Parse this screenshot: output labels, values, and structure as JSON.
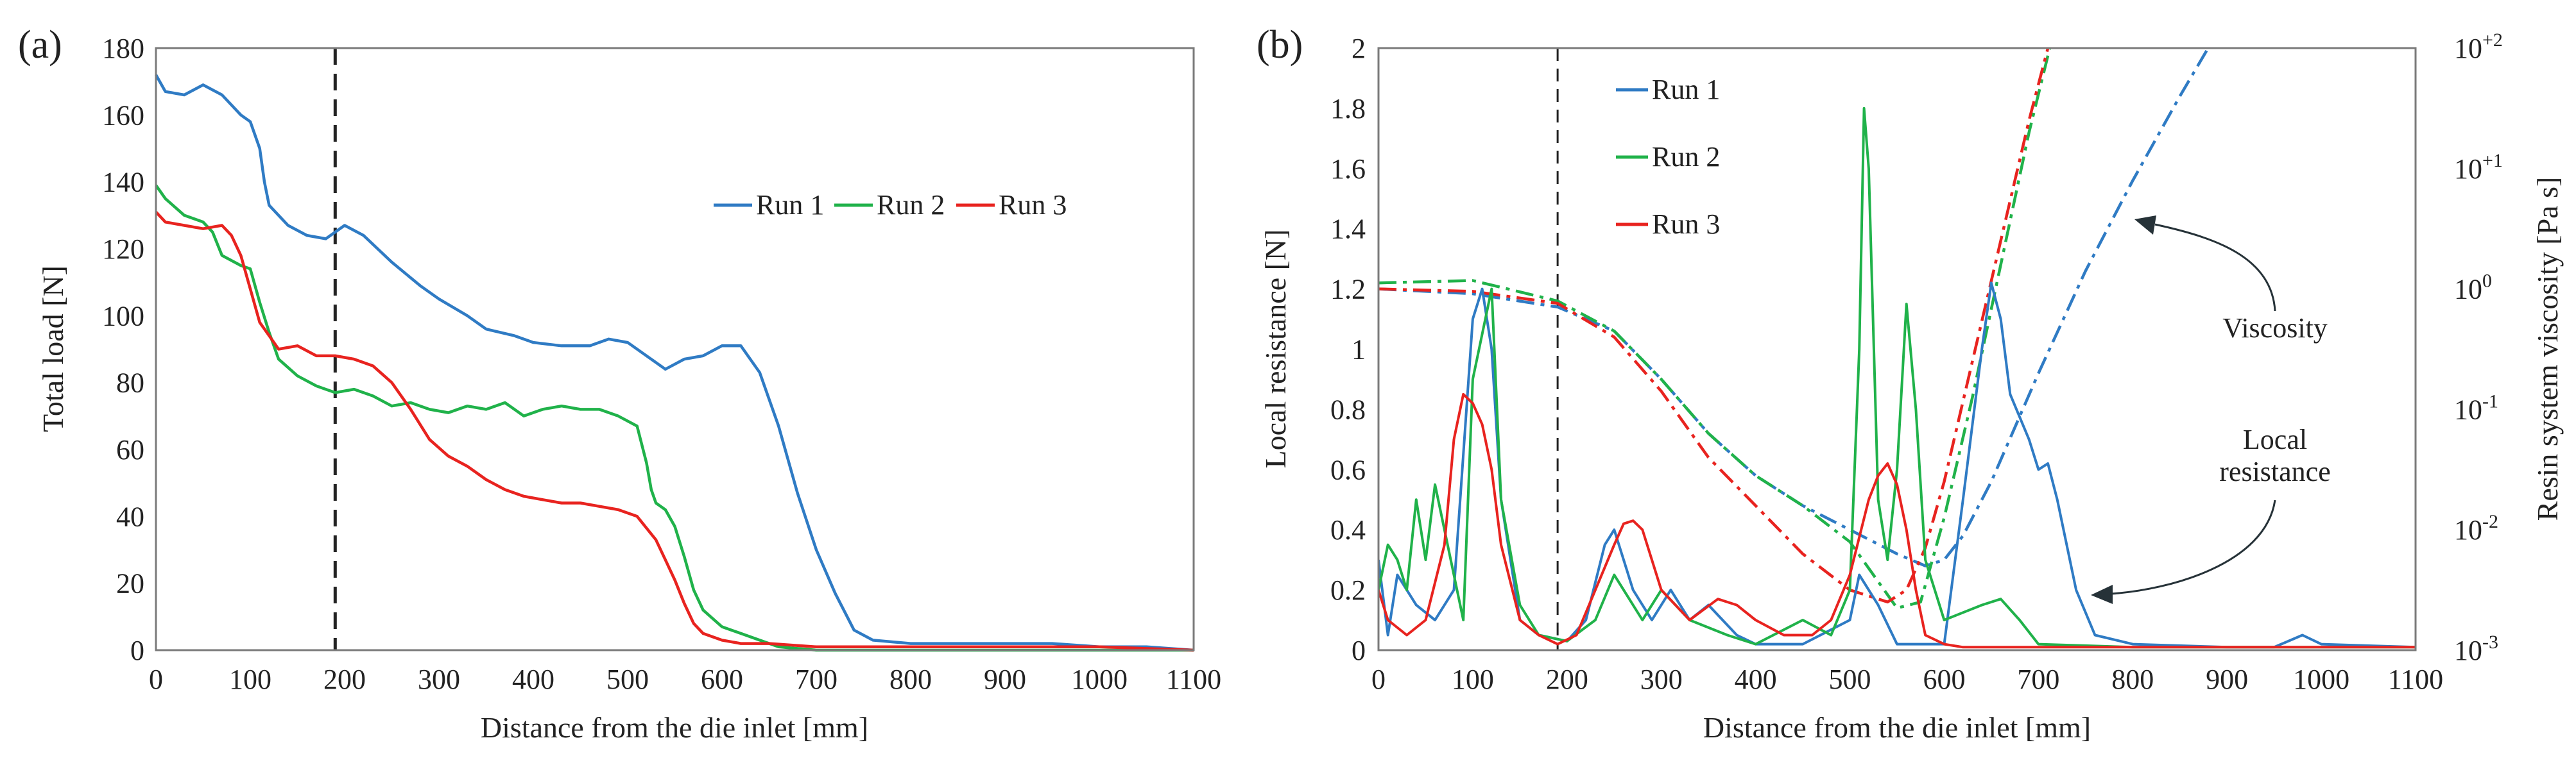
{
  "figure": {
    "panel_labels": [
      "(a)",
      "(b)"
    ],
    "annotations": [
      "Viscosity",
      "Local",
      "resistance"
    ],
    "colors": {
      "run1": "#2f7bc4",
      "run2": "#20b24a",
      "run3": "#e8231f",
      "axis": "#7a7a7a",
      "marker": "#222222"
    }
  },
  "chart_data": [
    {
      "type": "line",
      "panel": "(a)",
      "xlabel": "Distance from the die inlet [mm]",
      "ylabel": "Total load [N]",
      "xlim": [
        0,
        1100
      ],
      "ylim": [
        0,
        180
      ],
      "xticks": [
        0,
        100,
        200,
        300,
        400,
        500,
        600,
        700,
        800,
        900,
        1000,
        1100
      ],
      "yticks": [
        0,
        20,
        40,
        60,
        80,
        100,
        120,
        140,
        160,
        180
      ],
      "grid": false,
      "legend": "center-right",
      "vline_x": 190,
      "series": [
        {
          "name": "Run 1",
          "color": "#2f7bc4",
          "x": [
            0,
            10,
            30,
            50,
            70,
            90,
            100,
            110,
            115,
            120,
            140,
            160,
            180,
            200,
            220,
            250,
            280,
            300,
            330,
            350,
            380,
            400,
            430,
            460,
            480,
            500,
            520,
            540,
            560,
            580,
            600,
            620,
            640,
            660,
            680,
            700,
            720,
            740,
            760,
            800,
            900,
            950,
            1000,
            1050,
            1100
          ],
          "y": [
            172,
            167,
            166,
            169,
            166,
            160,
            158,
            150,
            140,
            133,
            127,
            124,
            123,
            127,
            124,
            116,
            109,
            105,
            100,
            96,
            94,
            92,
            91,
            91,
            93,
            92,
            88,
            84,
            87,
            88,
            91,
            91,
            83,
            67,
            47,
            30,
            17,
            6,
            3,
            2,
            2,
            2,
            1,
            1,
            0
          ]
        },
        {
          "name": "Run 2",
          "color": "#20b24a",
          "x": [
            0,
            10,
            30,
            50,
            60,
            70,
            90,
            100,
            110,
            120,
            130,
            150,
            170,
            190,
            210,
            230,
            250,
            270,
            290,
            310,
            330,
            350,
            370,
            390,
            410,
            430,
            450,
            470,
            490,
            510,
            520,
            525,
            530,
            540,
            550,
            560,
            570,
            580,
            600,
            620,
            640,
            660,
            700,
            800,
            1100
          ],
          "y": [
            139,
            135,
            130,
            128,
            125,
            118,
            115,
            114,
            104,
            95,
            87,
            82,
            79,
            77,
            78,
            76,
            73,
            74,
            72,
            71,
            73,
            72,
            74,
            70,
            72,
            73,
            72,
            72,
            70,
            67,
            56,
            48,
            44,
            42,
            37,
            28,
            18,
            12,
            7,
            5,
            3,
            1,
            0,
            0,
            0
          ]
        },
        {
          "name": "Run 3",
          "color": "#e8231f",
          "x": [
            0,
            10,
            30,
            50,
            70,
            80,
            90,
            100,
            110,
            120,
            130,
            150,
            170,
            190,
            210,
            230,
            250,
            270,
            290,
            310,
            330,
            350,
            370,
            390,
            410,
            430,
            450,
            470,
            490,
            510,
            530,
            540,
            550,
            560,
            570,
            580,
            600,
            620,
            650,
            700,
            800,
            1000,
            1100
          ],
          "y": [
            131,
            128,
            127,
            126,
            127,
            124,
            118,
            108,
            98,
            94,
            90,
            91,
            88,
            88,
            87,
            85,
            80,
            72,
            63,
            58,
            55,
            51,
            48,
            46,
            45,
            44,
            44,
            43,
            42,
            40,
            33,
            27,
            21,
            14,
            8,
            5,
            3,
            2,
            2,
            1,
            1,
            1,
            0
          ]
        }
      ]
    },
    {
      "type": "line",
      "panel": "(b)",
      "xlabel": "Distance from the die inlet [mm]",
      "ylabel": "Local resistance [N]",
      "y2label": "Resin system viscosity [Pa s]",
      "xlim": [
        0,
        1100
      ],
      "ylim": [
        0,
        2
      ],
      "y2scale": "log",
      "y2lim_exponent": [
        -3,
        2
      ],
      "xticks": [
        0,
        100,
        200,
        300,
        400,
        500,
        600,
        700,
        800,
        900,
        1000,
        1100
      ],
      "yticks": [
        "0",
        "0.2",
        "0.4",
        "0.6",
        "0.8",
        "1",
        "1.2",
        "1.4",
        "1.6",
        "1.8",
        "2"
      ],
      "y2ticks": [
        {
          "base": "10",
          "exp": "-3"
        },
        {
          "base": "10",
          "exp": "-2"
        },
        {
          "base": "10",
          "exp": "-1"
        },
        {
          "base": "10",
          "exp": "0"
        },
        {
          "base": "10",
          "exp": "+1"
        },
        {
          "base": "10",
          "exp": "+2"
        }
      ],
      "grid": false,
      "legend": "top-left",
      "vline_x": 190,
      "series": [
        {
          "name": "Run 1",
          "color": "#2f7bc4",
          "x": [
            0,
            10,
            20,
            40,
            60,
            80,
            100,
            110,
            120,
            130,
            150,
            170,
            200,
            220,
            240,
            250,
            260,
            270,
            290,
            310,
            330,
            350,
            380,
            400,
            450,
            500,
            510,
            530,
            550,
            600,
            620,
            640,
            650,
            660,
            670,
            690,
            700,
            710,
            720,
            740,
            760,
            800,
            900,
            950,
            980,
            1000,
            1100
          ],
          "y": [
            0.3,
            0.05,
            0.25,
            0.15,
            0.1,
            0.2,
            1.1,
            1.2,
            1.0,
            0.5,
            0.1,
            0.05,
            0.03,
            0.1,
            0.35,
            0.4,
            0.3,
            0.2,
            0.1,
            0.2,
            0.1,
            0.15,
            0.05,
            0.02,
            0.02,
            0.1,
            0.25,
            0.15,
            0.02,
            0.02,
            0.5,
            1.0,
            1.22,
            1.1,
            0.85,
            0.7,
            0.6,
            0.62,
            0.5,
            0.2,
            0.05,
            0.02,
            0.01,
            0.01,
            0.05,
            0.02,
            0.01
          ]
        },
        {
          "name": "Run 2",
          "color": "#20b24a",
          "x": [
            0,
            10,
            20,
            30,
            40,
            50,
            60,
            70,
            80,
            90,
            100,
            110,
            120,
            130,
            150,
            170,
            200,
            230,
            250,
            260,
            280,
            300,
            330,
            370,
            400,
            450,
            480,
            500,
            510,
            515,
            520,
            530,
            540,
            550,
            560,
            570,
            580,
            600,
            640,
            660,
            680,
            700,
            800,
            1100
          ],
          "y": [
            0.2,
            0.35,
            0.3,
            0.2,
            0.5,
            0.3,
            0.55,
            0.4,
            0.25,
            0.1,
            0.9,
            1.05,
            1.2,
            0.5,
            0.15,
            0.05,
            0.03,
            0.1,
            0.25,
            0.2,
            0.1,
            0.2,
            0.1,
            0.05,
            0.02,
            0.1,
            0.05,
            0.2,
            1.0,
            1.8,
            1.6,
            0.5,
            0.3,
            0.6,
            1.15,
            0.8,
            0.3,
            0.1,
            0.15,
            0.17,
            0.1,
            0.02,
            0.01,
            0.01
          ]
        },
        {
          "name": "Run 3",
          "color": "#e8231f",
          "x": [
            0,
            10,
            30,
            50,
            70,
            80,
            90,
            100,
            110,
            120,
            130,
            150,
            170,
            190,
            210,
            230,
            250,
            260,
            270,
            280,
            300,
            330,
            360,
            380,
            400,
            430,
            460,
            480,
            500,
            520,
            530,
            540,
            550,
            560,
            570,
            580,
            600,
            620,
            650,
            700,
            800,
            1100
          ],
          "y": [
            0.2,
            0.1,
            0.05,
            0.1,
            0.35,
            0.7,
            0.85,
            0.82,
            0.75,
            0.6,
            0.35,
            0.1,
            0.05,
            0.02,
            0.05,
            0.2,
            0.35,
            0.42,
            0.43,
            0.4,
            0.2,
            0.1,
            0.17,
            0.15,
            0.1,
            0.05,
            0.05,
            0.1,
            0.25,
            0.5,
            0.58,
            0.62,
            0.55,
            0.4,
            0.2,
            0.05,
            0.02,
            0.01,
            0.01,
            0.01,
            0.01,
            0.01
          ]
        }
      ],
      "viscosity_series": [
        {
          "run": "Run 1",
          "color": "#2f7bc4",
          "x": [
            0,
            100,
            190,
            250,
            300,
            350,
            400,
            450,
            500,
            550,
            580,
            600,
            620,
            650,
            700,
            750,
            800,
            850,
            880
          ],
          "y_exponent": [
            0.0,
            -0.04,
            -0.15,
            -0.35,
            -0.75,
            -1.2,
            -1.55,
            -1.8,
            -2.0,
            -2.2,
            -2.3,
            -2.25,
            -2.05,
            -1.6,
            -0.7,
            0.15,
            0.9,
            1.6,
            2.0
          ]
        },
        {
          "run": "Run 2",
          "color": "#20b24a",
          "x": [
            0,
            100,
            190,
            250,
            300,
            350,
            400,
            450,
            500,
            550,
            575,
            600,
            630,
            660,
            690,
            712
          ],
          "y_exponent": [
            0.05,
            0.07,
            -0.1,
            -0.35,
            -0.75,
            -1.2,
            -1.55,
            -1.8,
            -2.1,
            -2.65,
            -2.6,
            -1.9,
            -0.9,
            0.2,
            1.3,
            2.0
          ]
        },
        {
          "run": "Run 3",
          "color": "#e8231f",
          "x": [
            0,
            100,
            190,
            250,
            300,
            350,
            400,
            450,
            500,
            540,
            560,
            580,
            600,
            630,
            660,
            690,
            710
          ],
          "y_exponent": [
            0.0,
            -0.02,
            -0.12,
            -0.4,
            -0.85,
            -1.4,
            -1.8,
            -2.2,
            -2.5,
            -2.6,
            -2.5,
            -2.15,
            -1.6,
            -0.6,
            0.4,
            1.4,
            2.0
          ]
        }
      ]
    }
  ]
}
